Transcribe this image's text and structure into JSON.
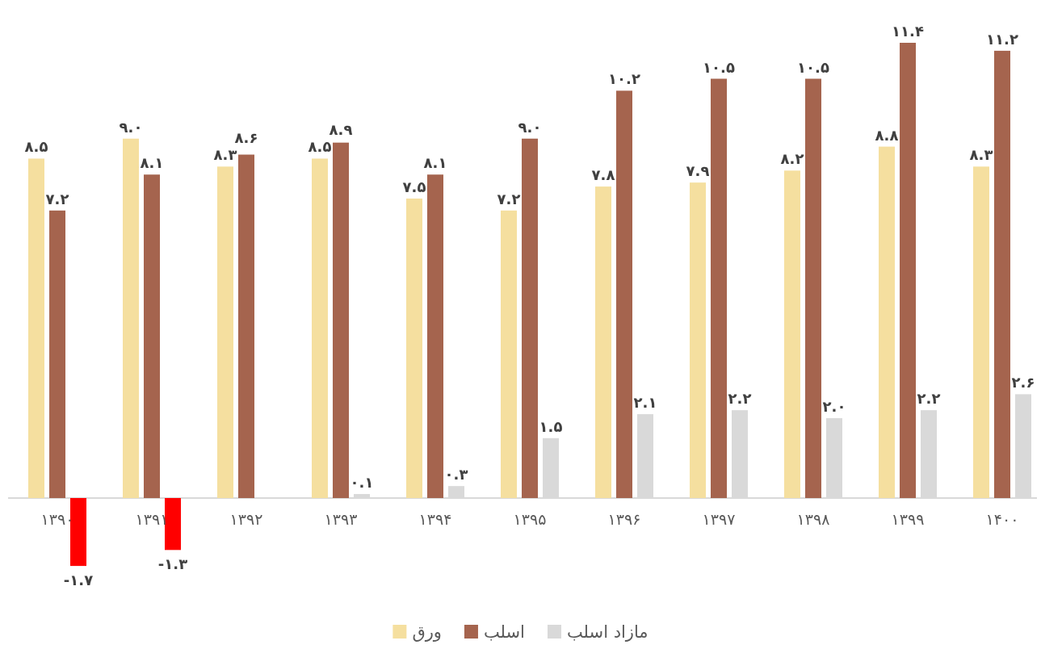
{
  "chart_data": {
    "type": "bar",
    "legend": "bottom",
    "categories": [
      "۱۳۹۰",
      "۱۳۹۱",
      "۱۳۹۲",
      "۱۳۹۳",
      "۱۳۹۴",
      "۱۳۹۵",
      "۱۳۹۶",
      "۱۳۹۷",
      "۱۳۹۸",
      "۱۳۹۹",
      "۱۴۰۰"
    ],
    "series": [
      {
        "name": "ورق",
        "color": "#f5df9f",
        "values": [
          8.5,
          9.0,
          8.3,
          8.5,
          7.5,
          7.2,
          7.8,
          7.9,
          8.2,
          8.8,
          8.3
        ],
        "value_labels": [
          "۸.۵",
          "۹.۰",
          "۸.۳",
          "۸.۵",
          "۷.۵",
          "۷.۲",
          "۷.۸",
          "۷.۹",
          "۸.۲",
          "۸.۸",
          "۸.۳"
        ]
      },
      {
        "name": "اسلب",
        "color": "#a5644e",
        "values": [
          7.2,
          8.1,
          8.6,
          8.9,
          8.1,
          9.0,
          10.2,
          10.5,
          10.5,
          11.4,
          11.2
        ],
        "value_labels": [
          "۷.۲",
          "۸.۱",
          "۸.۶",
          "۸.۹",
          "۸.۱",
          "۹.۰",
          "۱۰.۲",
          "۱۰.۵",
          "۱۰.۵",
          "۱۱.۴",
          "۱۱.۲"
        ]
      },
      {
        "name": "مازاد اسلب",
        "color": "#d9d9d9",
        "colors": [
          "#ff0000",
          "#ff0000",
          "#d9d9d9",
          "#d9d9d9",
          "#d9d9d9",
          "#d9d9d9",
          "#d9d9d9",
          "#d9d9d9",
          "#d9d9d9",
          "#d9d9d9",
          "#d9d9d9"
        ],
        "values": [
          -1.7,
          -1.3,
          0.0,
          0.1,
          0.3,
          1.5,
          2.1,
          2.2,
          2.0,
          2.2,
          2.6
        ],
        "value_labels": [
          "-۱.۷",
          "-۱.۳",
          null,
          "۰.۱",
          "۰.۳",
          "۱.۵",
          "۲.۱",
          "۲.۲",
          "۲.۰",
          "۲.۲",
          "۲.۶"
        ]
      }
    ]
  }
}
